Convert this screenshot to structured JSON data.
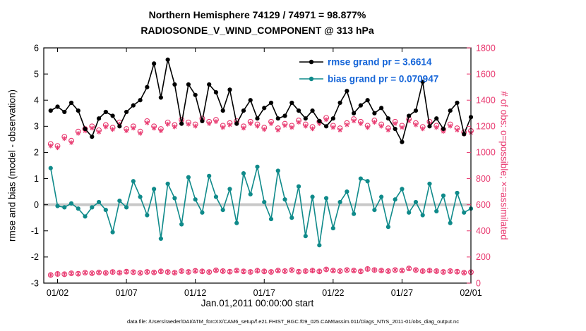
{
  "figure": {
    "title_line1": "Northern Hemisphere 74129 / 74971 = 98.877%",
    "title_line2": "RADIOSONDE_V_WIND_COMPONENT @ 313 hPa",
    "left_axis_label": "rmse and bias (model - observation)",
    "right_axis_label": "# of obs: o=possible; ×=assimilated",
    "x_label": "Jan.01,2011 00:00:00 start",
    "data_file_note": "data file: /Users/raeder/DAI/ATM_forcXX/CAM6_setup/f.e21.FHIST_BGC.f09_025.CAM6assim.011/Diags_NTrS_2011-01/obs_diag_output.nc"
  },
  "colors": {
    "rmse": "#000000",
    "bias": "#0f8a8a",
    "obs": "#e8376e",
    "zero_line": "#c8c8c8",
    "legend_text": "#1565d8",
    "axis": "#000000"
  },
  "legend": {
    "entries": [
      {
        "label": "rmse grand pr = 3.6614",
        "series": "rmse"
      },
      {
        "label": "bias grand pr = 0.070947",
        "series": "bias"
      }
    ]
  },
  "chart_data": {
    "type": "line",
    "title": "Northern Hemisphere 74129 / 74971 = 98.877%",
    "subtitle": "RADIOSONDE_V_WIND_COMPONENT @ 313 hPa",
    "xlabel": "Jan.01,2011 00:00:00 start",
    "ylabel_left": "rmse and bias (model - observation)",
    "ylabel_right": "# of obs: o=possible; ×=assimilated",
    "grid": false,
    "legend_position": "upper-right-inside",
    "x_axis": {
      "range_days": [
        0,
        31
      ],
      "start_day": 0.5,
      "step_days": 0.5,
      "tick_days": [
        1,
        6,
        11,
        16,
        21,
        26,
        31
      ],
      "tick_labels": [
        "01/02",
        "01/07",
        "01/12",
        "01/17",
        "01/22",
        "01/27",
        "02/01"
      ]
    },
    "left_axis": {
      "min": -3,
      "max": 6,
      "tick_step": 1,
      "tick_labels": [
        "-3",
        "-2",
        "-1",
        "0",
        "1",
        "2",
        "3",
        "4",
        "5",
        "6"
      ]
    },
    "right_axis": {
      "min": 0,
      "max": 1800,
      "tick_step": 200,
      "tick_labels": [
        "0",
        "200",
        "400",
        "600",
        "800",
        "1000",
        "1200",
        "1400",
        "1600",
        "1800"
      ]
    },
    "series": [
      {
        "name": "rmse",
        "axis": "left",
        "color": "#000000",
        "marker": "dot",
        "line": true,
        "values": [
          3.6,
          3.75,
          3.55,
          3.9,
          3.6,
          2.9,
          2.6,
          3.3,
          3.55,
          3.4,
          3.0,
          3.55,
          3.8,
          4.0,
          4.5,
          5.4,
          4.1,
          5.55,
          4.6,
          3.1,
          4.6,
          4.2,
          3.2,
          4.6,
          4.3,
          3.6,
          4.4,
          3.1,
          3.6,
          4.0,
          3.3,
          3.7,
          3.9,
          3.3,
          3.4,
          3.9,
          3.6,
          3.3,
          3.6,
          3.2,
          3.0,
          3.3,
          3.9,
          4.35,
          3.5,
          3.8,
          4.0,
          3.5,
          3.7,
          3.3,
          2.9,
          2.4,
          3.4,
          3.6,
          4.7,
          3.0,
          3.3,
          2.9,
          3.6,
          3.9,
          2.7,
          3.35
        ]
      },
      {
        "name": "bias",
        "axis": "left",
        "color": "#0f8a8a",
        "marker": "dot",
        "line": true,
        "values": [
          1.4,
          -0.05,
          -0.1,
          0.05,
          -0.15,
          -0.45,
          -0.1,
          0.1,
          -0.2,
          -1.05,
          0.15,
          -0.1,
          0.9,
          0.3,
          -0.4,
          0.6,
          -1.3,
          0.8,
          0.25,
          -0.75,
          1.05,
          0.2,
          -0.3,
          1.1,
          0.3,
          -0.2,
          0.6,
          -0.7,
          1.2,
          0.4,
          1.45,
          0.1,
          -0.55,
          1.3,
          0.2,
          -0.5,
          0.7,
          -1.2,
          0.3,
          -1.55,
          0.25,
          -0.9,
          0.1,
          0.5,
          -0.35,
          1.0,
          0.9,
          -0.2,
          0.3,
          -0.85,
          0.2,
          0.6,
          -0.3,
          0.1,
          -0.4,
          0.8,
          -0.25,
          0.35,
          -0.7,
          0.45,
          -0.3,
          -0.15
        ]
      },
      {
        "name": "obs-possible",
        "axis": "right",
        "color": "#e8376e",
        "marker": "circle",
        "line": false,
        "values": [
          1065,
          1050,
          1120,
          1090,
          1160,
          1180,
          1200,
          1170,
          1210,
          1190,
          1230,
          1180,
          1200,
          1160,
          1240,
          1200,
          1180,
          1230,
          1210,
          1250,
          1230,
          1215,
          1260,
          1235,
          1250,
          1205,
          1225,
          1240,
          1200,
          1235,
          1215,
          1190,
          1235,
          1185,
          1220,
          1205,
          1245,
          1215,
          1195,
          1235,
          1265,
          1205,
          1185,
          1225,
          1255,
          1235,
          1205,
          1245,
          1215,
          1185,
          1235,
          1205,
          1255,
          1225,
          1195,
          1235,
          1205,
          1175,
          1215,
          1185,
          1155,
          1165
        ]
      },
      {
        "name": "obs-assimilated",
        "axis": "right",
        "color": "#e8376e",
        "marker": "asterisk",
        "line": false,
        "values": [
          1050,
          1036,
          1106,
          1075,
          1146,
          1165,
          1186,
          1156,
          1196,
          1176,
          1216,
          1166,
          1186,
          1146,
          1226,
          1186,
          1166,
          1216,
          1196,
          1236,
          1216,
          1201,
          1246,
          1221,
          1236,
          1191,
          1211,
          1226,
          1186,
          1221,
          1201,
          1176,
          1221,
          1171,
          1206,
          1191,
          1231,
          1201,
          1181,
          1221,
          1251,
          1191,
          1171,
          1211,
          1241,
          1221,
          1191,
          1231,
          1201,
          1171,
          1221,
          1191,
          1241,
          1211,
          1181,
          1221,
          1191,
          1161,
          1201,
          1171,
          1141,
          1151
        ]
      },
      {
        "name": "obs-lower-band",
        "axis": "right",
        "color": "#e8376e",
        "marker": "circle-asterisk",
        "line": false,
        "values": [
          62,
          70,
          68,
          75,
          72,
          80,
          76,
          82,
          78,
          85,
          80,
          88,
          84,
          78,
          86,
          82,
          90,
          85,
          80,
          92,
          86,
          94,
          90,
          85,
          98,
          92,
          88,
          96,
          90,
          86,
          95,
          90,
          86,
          96,
          92,
          100,
          88,
          92,
          96,
          90,
          105,
          96,
          92,
          100,
          96,
          90,
          108,
          100,
          96,
          92,
          100,
          96,
          112,
          100,
          92,
          96,
          92,
          86,
          92,
          88,
          80,
          84
        ]
      }
    ]
  }
}
